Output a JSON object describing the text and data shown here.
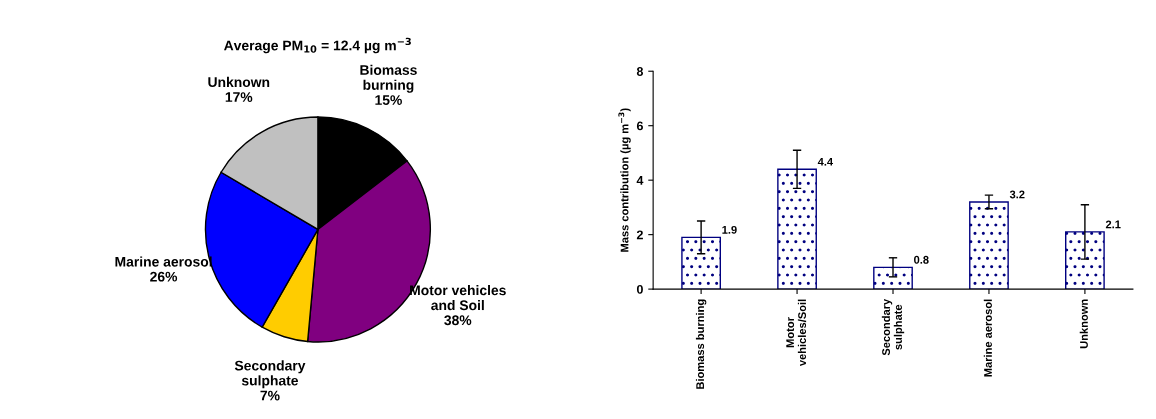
{
  "chart_data": [
    {
      "type": "pie",
      "title": "Average PM$_{10}$ = 12.4 µg m$^{−3}$",
      "categories": [
        "Biomass\nburning",
        "Motor vehicles\nand Soil",
        "Secondary\nsulphate",
        "Marine aerosol",
        "Unknown"
      ],
      "values": [
        15,
        38,
        7,
        26,
        17
      ],
      "value_labels": [
        "15%",
        "38%",
        "7%",
        "26%",
        "17%"
      ],
      "colors": [
        "#000000",
        "#800080",
        "#ffcc00",
        "#0000ff",
        "#c0c0c0"
      ]
    },
    {
      "type": "bar",
      "ylabel": "Mass contribution (µg m$^{−3}$)",
      "categories": [
        "Biomass burning",
        "Motor\nvehicles/Soil",
        "Secondary\nsulphate",
        "Marine aerosol",
        "Unknown"
      ],
      "values": [
        1.9,
        4.4,
        0.8,
        3.2,
        2.1
      ],
      "errors": [
        0.6,
        0.7,
        0.35,
        0.25,
        1.0
      ],
      "color": "#000080",
      "ylim": [
        0,
        8
      ],
      "yticks": [
        0,
        2,
        4,
        6,
        8
      ],
      "data_labels": true,
      "grid": false,
      "legend": false
    }
  ]
}
